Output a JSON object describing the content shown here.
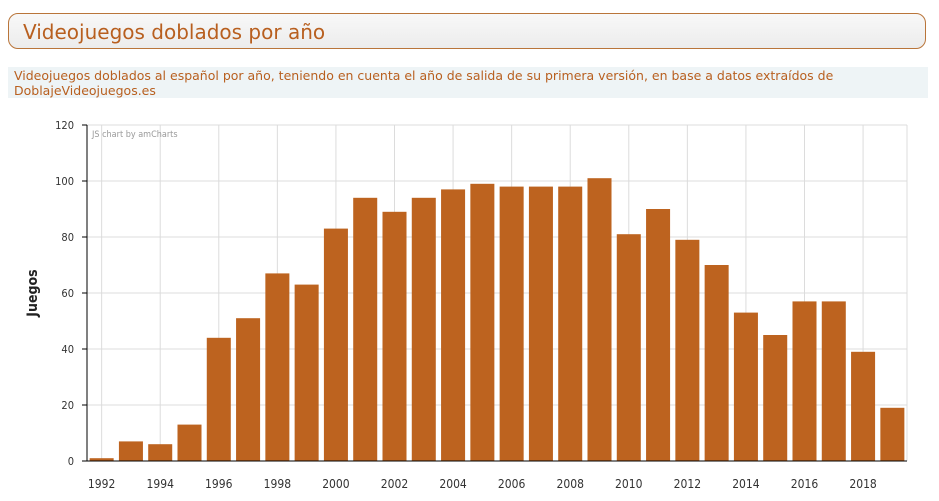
{
  "header": {
    "title": "Videojuegos doblados por año"
  },
  "description": "Videojuegos doblados al español por año, teniendo en cuenta el año de salida de su primera versión, en base a datos extraídos de DoblajeVideojuegos.es",
  "credit": "JS chart by amCharts",
  "colors": {
    "bar": "#bd631f",
    "title": "#b85f1f",
    "grid": "#dcdcdc"
  },
  "chart_data": {
    "type": "bar",
    "title": "",
    "xlabel": "",
    "ylabel": "Juegos",
    "ylim": [
      0,
      120
    ],
    "yticks": [
      0,
      20,
      40,
      60,
      80,
      100,
      120
    ],
    "categories": [
      "1992",
      "1993",
      "1994",
      "1995",
      "1996",
      "1997",
      "1998",
      "1999",
      "2000",
      "2001",
      "2002",
      "2003",
      "2004",
      "2005",
      "2006",
      "2007",
      "2008",
      "2009",
      "2010",
      "2011",
      "2012",
      "2013",
      "2014",
      "2015",
      "2016",
      "2017",
      "2018",
      "2019"
    ],
    "xtick_labels": [
      "1992",
      "",
      "1994",
      "",
      "1996",
      "",
      "1998",
      "",
      "2000",
      "",
      "2002",
      "",
      "2004",
      "",
      "2006",
      "",
      "2008",
      "",
      "2010",
      "",
      "2012",
      "",
      "2014",
      "",
      "2016",
      "",
      "2018",
      ""
    ],
    "values": [
      1,
      7,
      6,
      13,
      44,
      51,
      67,
      63,
      83,
      94,
      89,
      94,
      97,
      99,
      98,
      98,
      98,
      101,
      81,
      90,
      79,
      70,
      53,
      45,
      57,
      57,
      39,
      19
    ],
    "grid": true,
    "legend": "none"
  }
}
